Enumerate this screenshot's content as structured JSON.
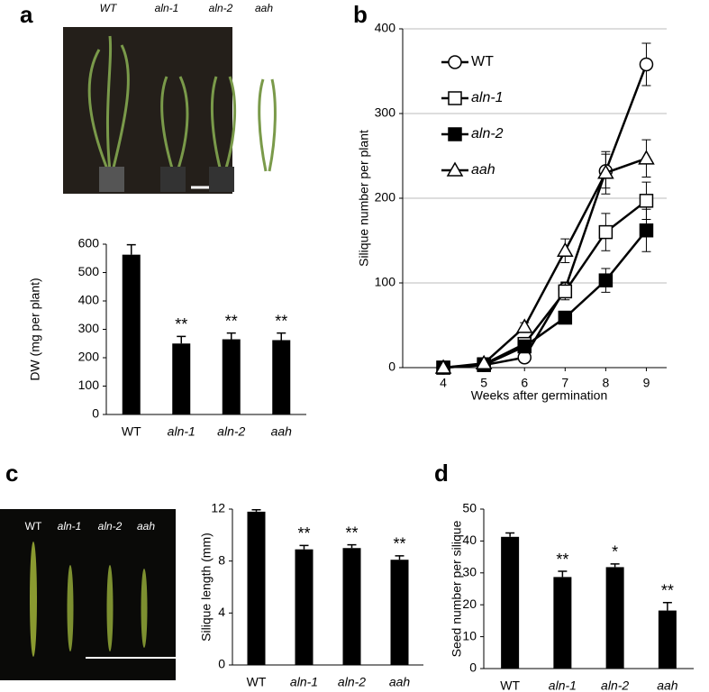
{
  "panels": {
    "a": {
      "label": "a",
      "photo_labels": [
        "WT",
        "aln-1",
        "aln-2",
        "aah"
      ]
    },
    "b": {
      "label": "b"
    },
    "c": {
      "label": "c",
      "photo_labels": [
        "WT",
        "aln-1",
        "aln-2",
        "aah"
      ]
    },
    "d": {
      "label": "d"
    }
  },
  "chart_data": [
    {
      "type": "bar",
      "ylabel": "DW (mg per plant)",
      "categories": [
        "WT",
        "aln-1",
        "aln-2",
        "aah"
      ],
      "values": [
        563,
        250,
        265,
        262
      ],
      "errors": [
        35,
        25,
        22,
        25
      ],
      "significance": [
        null,
        "**",
        "**",
        "**"
      ],
      "color": "#000000",
      "ylim": [
        0,
        600
      ],
      "yticks": [
        0,
        100,
        200,
        300,
        400,
        500,
        600
      ]
    },
    {
      "type": "line",
      "xlabel": "Weeks after germination",
      "ylabel": "Silique number per plant",
      "x": [
        4,
        5,
        6,
        7,
        8,
        9
      ],
      "xlim": [
        3,
        9.5
      ],
      "xticks": [
        4,
        5,
        6,
        7,
        8,
        9
      ],
      "ylim": [
        0,
        400
      ],
      "yticks": [
        0,
        100,
        200,
        300,
        400
      ],
      "grid": true,
      "series": [
        {
          "name": "WT",
          "color": "#000000",
          "marker": "circle",
          "marker_fill": "#ffffff",
          "values": [
            0,
            3,
            12,
            93,
            232,
            358
          ],
          "errors": [
            0,
            2,
            3,
            8,
            20,
            25
          ]
        },
        {
          "name": "aln-1",
          "color": "#000000",
          "marker": "square",
          "marker_fill": "#ffffff",
          "values": [
            0,
            4,
            28,
            90,
            160,
            197
          ],
          "errors": [
            0,
            2,
            5,
            10,
            22,
            22
          ]
        },
        {
          "name": "aln-2",
          "color": "#000000",
          "marker": "square",
          "marker_fill": "#000000",
          "values": [
            0,
            3,
            25,
            59,
            103,
            162
          ],
          "errors": [
            0,
            2,
            4,
            6,
            14,
            25
          ]
        },
        {
          "name": "aah",
          "color": "#000000",
          "marker": "triangle",
          "marker_fill": "#ffffff",
          "values": [
            0,
            5,
            48,
            138,
            230,
            247
          ],
          "errors": [
            0,
            2,
            5,
            14,
            25,
            22
          ]
        }
      ]
    },
    {
      "type": "bar",
      "ylabel": "Silique length (mm)",
      "categories": [
        "WT",
        "aln-1",
        "aln-2",
        "aah"
      ],
      "values": [
        11.8,
        8.9,
        9.0,
        8.1
      ],
      "errors": [
        0.15,
        0.3,
        0.25,
        0.3
      ],
      "significance": [
        null,
        "**",
        "**",
        "**"
      ],
      "color": "#000000",
      "ylim": [
        0,
        12
      ],
      "yticks": [
        0,
        4,
        8,
        12
      ]
    },
    {
      "type": "bar",
      "ylabel": "Seed number per silique",
      "categories": [
        "WT",
        "aln-1",
        "aln-2",
        "aah"
      ],
      "values": [
        41.3,
        28.7,
        31.8,
        18.2
      ],
      "errors": [
        1.2,
        1.8,
        1.0,
        2.5
      ],
      "significance": [
        null,
        "**",
        "*",
        "**"
      ],
      "color": "#000000",
      "ylim": [
        0,
        50
      ],
      "yticks": [
        0,
        10,
        20,
        30,
        40,
        50
      ]
    }
  ]
}
